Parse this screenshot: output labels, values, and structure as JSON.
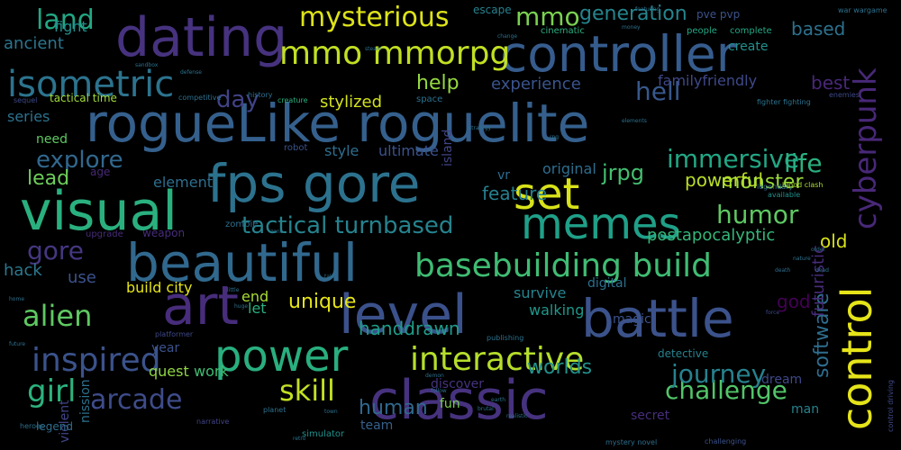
{
  "words": [
    {
      "text": "rogueLike roguelite",
      "color": "#35608d"
    },
    {
      "text": "classic",
      "color": "#46327e"
    },
    {
      "text": "controller",
      "color": "#365c8d"
    },
    {
      "text": "dating",
      "color": "#46327e"
    },
    {
      "text": "visual",
      "color": "#2ab07f"
    },
    {
      "text": "fps gore",
      "color": "#2c728e"
    },
    {
      "text": "level",
      "color": "#3b518b"
    },
    {
      "text": "battle",
      "color": "#3b528b"
    },
    {
      "text": "art",
      "color": "#472d7b"
    },
    {
      "text": "beautiful",
      "color": "#31688e"
    },
    {
      "text": "power",
      "color": "#29af7f"
    },
    {
      "text": "memes",
      "color": "#1fa088"
    },
    {
      "text": "set",
      "color": "#d8e219"
    },
    {
      "text": "control",
      "color": "#e5e419"
    },
    {
      "text": "cyberpunk",
      "color": "#482878"
    },
    {
      "text": "isometric",
      "color": "#2c738e"
    },
    {
      "text": "mmo mmorpg",
      "color": "#c2df23"
    },
    {
      "text": "mysterious",
      "color": "#dde318"
    },
    {
      "text": "basebuilding build",
      "color": "#3fbc73"
    },
    {
      "text": "interactive",
      "color": "#b5de2b"
    },
    {
      "text": "alien",
      "color": "#5ec962"
    },
    {
      "text": "inspired",
      "color": "#3b528b"
    },
    {
      "text": "girl",
      "color": "#2db27d"
    },
    {
      "text": "arcade",
      "color": "#3e4c8a"
    },
    {
      "text": "skill",
      "color": "#c2df23"
    },
    {
      "text": "challenge",
      "color": "#52c569"
    },
    {
      "text": "journey",
      "color": "#26828e"
    },
    {
      "text": "tactical turnbased",
      "color": "#25838e"
    },
    {
      "text": "humor",
      "color": "#5ec962"
    },
    {
      "text": "land",
      "color": "#22a884"
    },
    {
      "text": "mmo",
      "color": "#7ad151"
    },
    {
      "text": "generation",
      "color": "#25858e"
    },
    {
      "text": "hell",
      "color": "#38588c"
    },
    {
      "text": "help",
      "color": "#95d840"
    },
    {
      "text": "experience",
      "color": "#3a548c"
    },
    {
      "text": "explore",
      "color": "#31688e"
    },
    {
      "text": "immersive",
      "color": "#22a785"
    },
    {
      "text": "life",
      "color": "#2ab07f"
    },
    {
      "text": "day",
      "color": "#404387"
    },
    {
      "text": "gore",
      "color": "#453781"
    },
    {
      "text": "monster",
      "color": "#9bd93c"
    },
    {
      "text": "jrpg",
      "color": "#44bf70"
    },
    {
      "text": "feature",
      "color": "#277f8e"
    },
    {
      "text": "handdrawn",
      "color": "#1e9c89"
    },
    {
      "text": "unique",
      "color": "#e5e419"
    },
    {
      "text": "software",
      "color": "#2e6d8e"
    },
    {
      "text": "worlds",
      "color": "#21918c"
    },
    {
      "text": "human",
      "color": "#31688e"
    },
    {
      "text": "lead",
      "color": "#6ccd5a"
    },
    {
      "text": "ancient",
      "color": "#2b758e"
    },
    {
      "text": "fight",
      "color": "#21908d"
    },
    {
      "text": "based",
      "color": "#2c718e"
    },
    {
      "text": "stylized",
      "color": "#d2e21b"
    },
    {
      "text": "familyfriendly",
      "color": "#3e4989"
    },
    {
      "text": "best",
      "color": "#482878"
    },
    {
      "text": "element",
      "color": "#2e6e8e"
    },
    {
      "text": "ultimate",
      "color": "#3b528b"
    },
    {
      "text": "style",
      "color": "#2e6e8e"
    },
    {
      "text": "original",
      "color": "#2e6e8e"
    },
    {
      "text": "powerful",
      "color": "#b8de29"
    },
    {
      "text": "postapocalyptic",
      "color": "#35b779"
    },
    {
      "text": "old",
      "color": "#d8e219"
    },
    {
      "text": "futuristic",
      "color": "#472c7a"
    },
    {
      "text": "god",
      "color": "#440154"
    },
    {
      "text": "hack",
      "color": "#2a788e"
    },
    {
      "text": "use",
      "color": "#3b528b"
    },
    {
      "text": "build city",
      "color": "#e5e419"
    },
    {
      "text": "walking",
      "color": "#1f988b"
    },
    {
      "text": "digital",
      "color": "#2d708e"
    },
    {
      "text": "end",
      "color": "#a8db34"
    },
    {
      "text": "magic",
      "color": "#3b528b"
    },
    {
      "text": "survive",
      "color": "#25848e"
    },
    {
      "text": "need",
      "color": "#5ec962"
    },
    {
      "text": "series",
      "color": "#2c728e"
    },
    {
      "text": "let",
      "color": "#29af7f"
    },
    {
      "text": "work",
      "color": "#3fbc73"
    },
    {
      "text": "discover",
      "color": "#46337f"
    },
    {
      "text": "fun",
      "color": "#7ad151"
    },
    {
      "text": "team",
      "color": "#35608d"
    },
    {
      "text": "secret",
      "color": "#472d7b"
    },
    {
      "text": "dream",
      "color": "#3e4989"
    },
    {
      "text": "detective",
      "color": "#26828e"
    },
    {
      "text": "quest",
      "color": "#8fd744"
    },
    {
      "text": "year",
      "color": "#3b528b"
    },
    {
      "text": "violent",
      "color": "#404588"
    },
    {
      "text": "nission",
      "color": "#2c718e"
    },
    {
      "text": "man",
      "color": "#26828e"
    },
    {
      "text": "vr",
      "color": "#2e6e8e"
    },
    {
      "text": "pve pvp",
      "color": "#3b528b"
    },
    {
      "text": "create",
      "color": "#21918c"
    },
    {
      "text": "escape",
      "color": "#26828e"
    },
    {
      "text": "people",
      "color": "#22a884"
    },
    {
      "text": "complete",
      "color": "#22a884"
    },
    {
      "text": "cinematic",
      "color": "#2ab07f"
    },
    {
      "text": "island",
      "color": "#414487"
    },
    {
      "text": "tactical time",
      "color": "#a0da39"
    },
    {
      "text": "competitive",
      "color": "#2d708e"
    },
    {
      "text": "history",
      "color": "#2d708e"
    },
    {
      "text": "age",
      "color": "#482878"
    },
    {
      "text": "upgrade",
      "color": "#472c7a"
    },
    {
      "text": "zombie",
      "color": "#2e6e8e"
    },
    {
      "text": "weapon",
      "color": "#472c7a"
    },
    {
      "text": "robot",
      "color": "#3b528b"
    },
    {
      "text": "space",
      "color": "#2c728e"
    },
    {
      "text": "creature",
      "color": "#2ab07f"
    },
    {
      "text": "legend",
      "color": "#2e6e8e"
    },
    {
      "text": "heroes",
      "color": "#2c718e"
    },
    {
      "text": "narrative",
      "color": "#414487"
    },
    {
      "text": "simulator",
      "color": "#21918c"
    },
    {
      "text": "platformer",
      "color": "#3e4989"
    },
    {
      "text": "planet",
      "color": "#2c728e"
    },
    {
      "text": "publishing",
      "color": "#2c728e"
    },
    {
      "text": "mystery novel",
      "color": "#2e6e8e"
    },
    {
      "text": "challenging",
      "color": "#3b528b"
    },
    {
      "text": "available",
      "color": "#21918c"
    },
    {
      "text": "legendary",
      "color": "#2e6e8e"
    },
    {
      "text": "blood clash",
      "color": "#a8db34"
    },
    {
      "text": "fighter fighting",
      "color": "#2c728e"
    },
    {
      "text": "enemies",
      "color": "#3e4989"
    },
    {
      "text": "control driving",
      "color": "#3e4989"
    },
    {
      "text": "war wargame",
      "color": "#2c728e"
    },
    {
      "text": "featuring",
      "color": "#2c728e"
    },
    {
      "text": "money",
      "color": "#2c728e"
    },
    {
      "text": "change",
      "color": "#2c728e"
    },
    {
      "text": "steam",
      "color": "#2c728e"
    },
    {
      "text": "sequel",
      "color": "#3e4989"
    },
    {
      "text": "death",
      "color": "#2e6e8e"
    },
    {
      "text": "nature",
      "color": "#2c728e"
    },
    {
      "text": "order",
      "color": "#2c728e"
    },
    {
      "text": "dead",
      "color": "#2c728e"
    },
    {
      "text": "force",
      "color": "#3e4989"
    },
    {
      "text": "earth",
      "color": "#2c728e"
    },
    {
      "text": "follow",
      "color": "#2c728e"
    },
    {
      "text": "town",
      "color": "#2c728e"
    },
    {
      "text": "retro",
      "color": "#2c728e"
    },
    {
      "text": "little",
      "color": "#2c728e"
    },
    {
      "text": "zone",
      "color": "#2c728e"
    },
    {
      "text": "tale",
      "color": "#2c728e"
    },
    {
      "text": "huge",
      "color": "#2c728e"
    },
    {
      "text": "home",
      "color": "#2c728e"
    },
    {
      "text": "future",
      "color": "#2c728e"
    },
    {
      "text": "demon",
      "color": "#2c728e"
    },
    {
      "text": "brutal",
      "color": "#2c728e"
    },
    {
      "text": "realistic",
      "color": "#2c728e"
    },
    {
      "text": "sandbox",
      "color": "#2c728e"
    },
    {
      "text": "defense",
      "color": "#2c728e"
    },
    {
      "text": "strategy",
      "color": "#2c728e"
    },
    {
      "text": "rpg",
      "color": "#2c728e"
    },
    {
      "text": "elements",
      "color": "#2c728e"
    }
  ]
}
